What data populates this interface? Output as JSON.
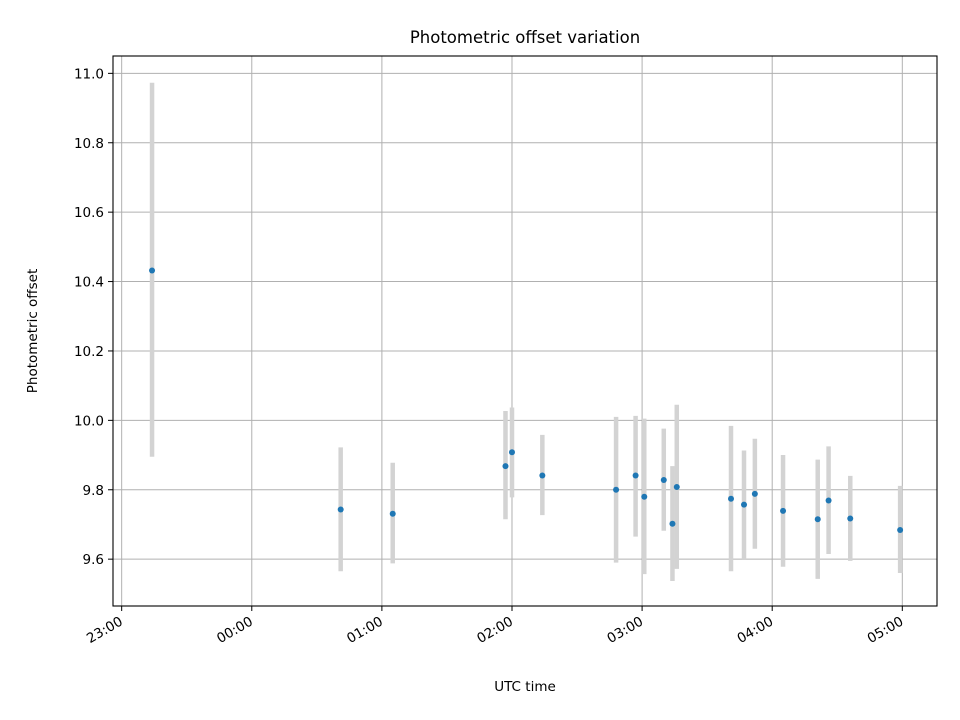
{
  "chart_data": {
    "type": "scatter",
    "title": "Photometric offset variation",
    "xlabel": "UTC time",
    "ylabel": "Photometric offset",
    "x_format": "HH:MM",
    "xlim": [
      "22:56",
      "05:16"
    ],
    "ylim": [
      9.465,
      11.05
    ],
    "x_ticks": [
      "23:00",
      "00:00",
      "01:00",
      "02:00",
      "03:00",
      "04:00",
      "05:00"
    ],
    "y_ticks": [
      9.6,
      9.8,
      10.0,
      10.2,
      10.4,
      10.6,
      10.8,
      11.0
    ],
    "y_tick_labels": [
      "9.6",
      "9.8",
      "10.0",
      "10.2",
      "10.4",
      "10.6",
      "10.8",
      "11.0"
    ],
    "grid": true,
    "marker_color": "#1f77b4",
    "errorbar_color": "#d3d3d3",
    "points": [
      {
        "x": "23:14",
        "y": 10.432,
        "yerr_low": 9.895,
        "yerr_high": 10.973
      },
      {
        "x": "00:41",
        "y": 9.743,
        "yerr_low": 9.565,
        "yerr_high": 9.922
      },
      {
        "x": "01:05",
        "y": 9.731,
        "yerr_low": 9.588,
        "yerr_high": 9.878
      },
      {
        "x": "01:57",
        "y": 9.868,
        "yerr_low": 9.715,
        "yerr_high": 10.027
      },
      {
        "x": "02:00",
        "y": 9.908,
        "yerr_low": 9.778,
        "yerr_high": 10.037
      },
      {
        "x": "02:14",
        "y": 9.841,
        "yerr_low": 9.727,
        "yerr_high": 9.958
      },
      {
        "x": "02:48",
        "y": 9.8,
        "yerr_low": 9.59,
        "yerr_high": 10.01
      },
      {
        "x": "02:57",
        "y": 9.841,
        "yerr_low": 9.665,
        "yerr_high": 10.013
      },
      {
        "x": "03:01",
        "y": 9.78,
        "yerr_low": 9.557,
        "yerr_high": 10.005
      },
      {
        "x": "03:10",
        "y": 9.828,
        "yerr_low": 9.682,
        "yerr_high": 9.976
      },
      {
        "x": "03:14",
        "y": 9.702,
        "yerr_low": 9.537,
        "yerr_high": 9.868
      },
      {
        "x": "03:16",
        "y": 9.808,
        "yerr_low": 9.572,
        "yerr_high": 10.045
      },
      {
        "x": "03:41",
        "y": 9.774,
        "yerr_low": 9.565,
        "yerr_high": 9.984
      },
      {
        "x": "03:47",
        "y": 9.757,
        "yerr_low": 9.6,
        "yerr_high": 9.913
      },
      {
        "x": "03:52",
        "y": 9.788,
        "yerr_low": 9.63,
        "yerr_high": 9.947
      },
      {
        "x": "04:05",
        "y": 9.739,
        "yerr_low": 9.578,
        "yerr_high": 9.9
      },
      {
        "x": "04:21",
        "y": 9.715,
        "yerr_low": 9.543,
        "yerr_high": 9.887
      },
      {
        "x": "04:26",
        "y": 9.769,
        "yerr_low": 9.615,
        "yerr_high": 9.925
      },
      {
        "x": "04:36",
        "y": 9.717,
        "yerr_low": 9.595,
        "yerr_high": 9.84
      },
      {
        "x": "04:59",
        "y": 9.684,
        "yerr_low": 9.56,
        "yerr_high": 9.811
      }
    ]
  }
}
